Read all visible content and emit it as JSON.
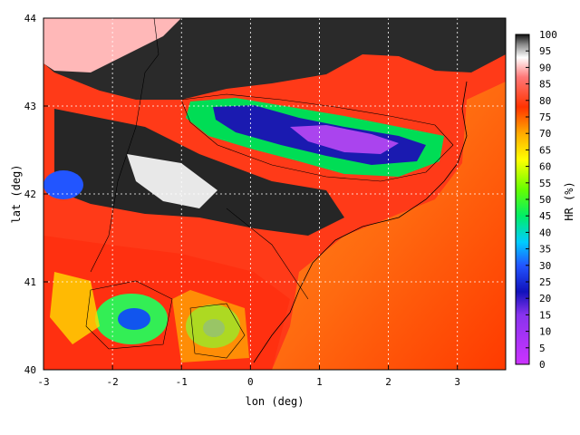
{
  "map": {
    "xlabel": "lon (deg)",
    "ylabel": "lat (deg)",
    "x_ticks": [
      "-3",
      "-2",
      "-1",
      "0",
      "1",
      "2",
      "3"
    ],
    "y_ticks": [
      "40",
      "41",
      "42",
      "43",
      "44"
    ],
    "xlim": [
      -3,
      3.7
    ],
    "ylim": [
      40,
      44
    ],
    "grid": "dotted white",
    "colorbar": {
      "label": "HR (%)",
      "ticks": [
        "0",
        "5",
        "10",
        "15",
        "20",
        "25",
        "30",
        "35",
        "40",
        "45",
        "50",
        "55",
        "60",
        "65",
        "70",
        "75",
        "80",
        "85",
        "90",
        "95",
        "100"
      ],
      "range": [
        0,
        100
      ],
      "stops": [
        {
          "value": 0,
          "color": "#cc33ff"
        },
        {
          "value": 15,
          "color": "#8833ee"
        },
        {
          "value": 22,
          "color": "#1111bb"
        },
        {
          "value": 30,
          "color": "#2255ff"
        },
        {
          "value": 37,
          "color": "#00ccff"
        },
        {
          "value": 45,
          "color": "#00ee66"
        },
        {
          "value": 53,
          "color": "#66ff00"
        },
        {
          "value": 62,
          "color": "#ffff00"
        },
        {
          "value": 70,
          "color": "#ffaa00"
        },
        {
          "value": 78,
          "color": "#ff3300"
        },
        {
          "value": 87,
          "color": "#ff7777"
        },
        {
          "value": 93,
          "color": "#ffffff"
        },
        {
          "value": 97,
          "color": "#888888"
        },
        {
          "value": 100,
          "color": "#111111"
        }
      ]
    }
  }
}
